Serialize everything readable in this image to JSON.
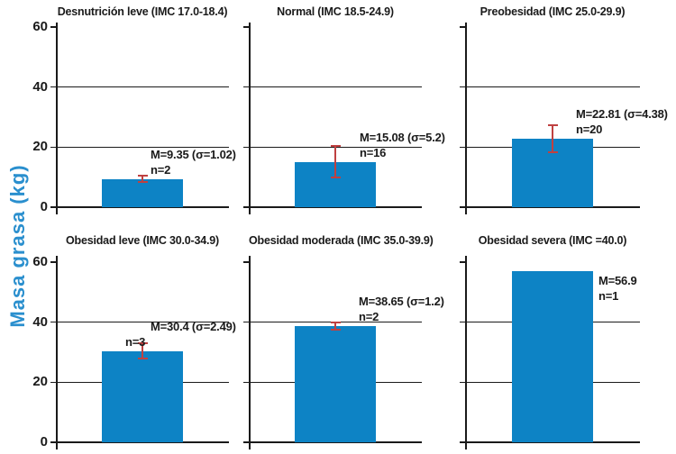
{
  "chart_data": {
    "type": "bar",
    "ylabel": "Masa grasa (kg)",
    "ylim": [
      0,
      60
    ],
    "yticks": [
      0,
      20,
      40,
      60
    ],
    "gridlines": [
      20,
      40
    ],
    "layout": "2 rows x 3 columns of small-multiple bar panels, y tick labels only on left column, grid on at 20 and 40",
    "error_bars": "±σ (standard deviation), none on n=1 panel",
    "panels": [
      {
        "title": "Desnutrición leve (IMC 17.0-18.4)",
        "mean": 9.35,
        "sigma": 1.02,
        "n": 2,
        "label_mean": "M=9.35 (σ=1.02)",
        "label_n": "n=2"
      },
      {
        "title": "Normal (IMC 18.5-24.9)",
        "mean": 15.08,
        "sigma": 5.2,
        "n": 16,
        "label_mean": "M=15.08 (σ=5.2)",
        "label_n": "n=16"
      },
      {
        "title": "Preobesidad (IMC 25.0-29.9)",
        "mean": 22.81,
        "sigma": 4.38,
        "n": 20,
        "label_mean": "M=22.81 (σ=4.38)",
        "label_n": "n=20"
      },
      {
        "title": "Obesidad leve (IMC 30.0-34.9)",
        "mean": 30.4,
        "sigma": 2.49,
        "n": 3,
        "label_mean": "M=30.4 (σ=2.49)",
        "label_n": "n=3"
      },
      {
        "title": "Obesidad moderada (IMC 35.0-39.9)",
        "mean": 38.65,
        "sigma": 1.2,
        "n": 2,
        "label_mean": "M=38.65 (σ=1.2)",
        "label_n": "n=2"
      },
      {
        "title": "Obesidad severa (IMC =40.0)",
        "mean": 56.9,
        "sigma": null,
        "n": 1,
        "label_mean": "M=56.9",
        "label_n": "n=1"
      }
    ]
  },
  "colors": {
    "bar": "#0d83c5",
    "error_bar": "#bf4141",
    "ylabel_text": "#2a8fce",
    "axis": "#1a1a1a",
    "text": "#1a1a1a"
  }
}
